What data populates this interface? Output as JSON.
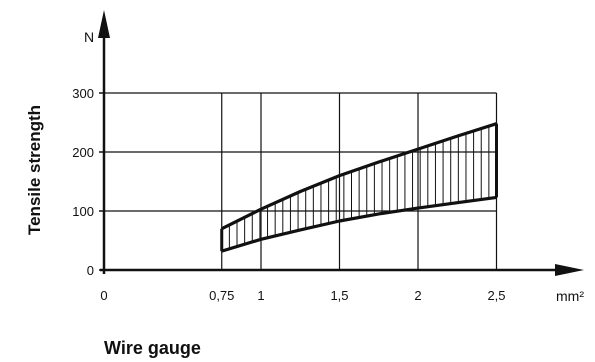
{
  "chart_data": {
    "type": "area",
    "xlabel": "Wire gauge",
    "ylabel": "Tensile strength",
    "x_unit": "mm²",
    "y_unit": "N",
    "xlim": [
      0,
      3
    ],
    "ylim": [
      0,
      300
    ],
    "x_ticks": [
      0,
      0.75,
      1,
      1.5,
      2,
      2.5
    ],
    "x_tick_labels": [
      "0",
      "0,75",
      "1",
      "1,5",
      "2",
      "2,5"
    ],
    "y_ticks": [
      0,
      100,
      200,
      300
    ],
    "y_tick_labels": [
      "0",
      "100",
      "200",
      "300"
    ],
    "grid": true,
    "series": [
      {
        "x": [
          0.75,
          1,
          1.25,
          1.5,
          1.75,
          2,
          2.25,
          2.5
        ],
        "values": [
          70,
          103,
          133,
          160,
          183,
          205,
          227,
          248
        ]
      },
      {
        "x": [
          0.75,
          1,
          1.25,
          1.5,
          1.75,
          2,
          2.25,
          2.5
        ],
        "values": [
          32,
          52,
          68,
          83,
          95,
          105,
          114,
          123
        ]
      }
    ]
  }
}
